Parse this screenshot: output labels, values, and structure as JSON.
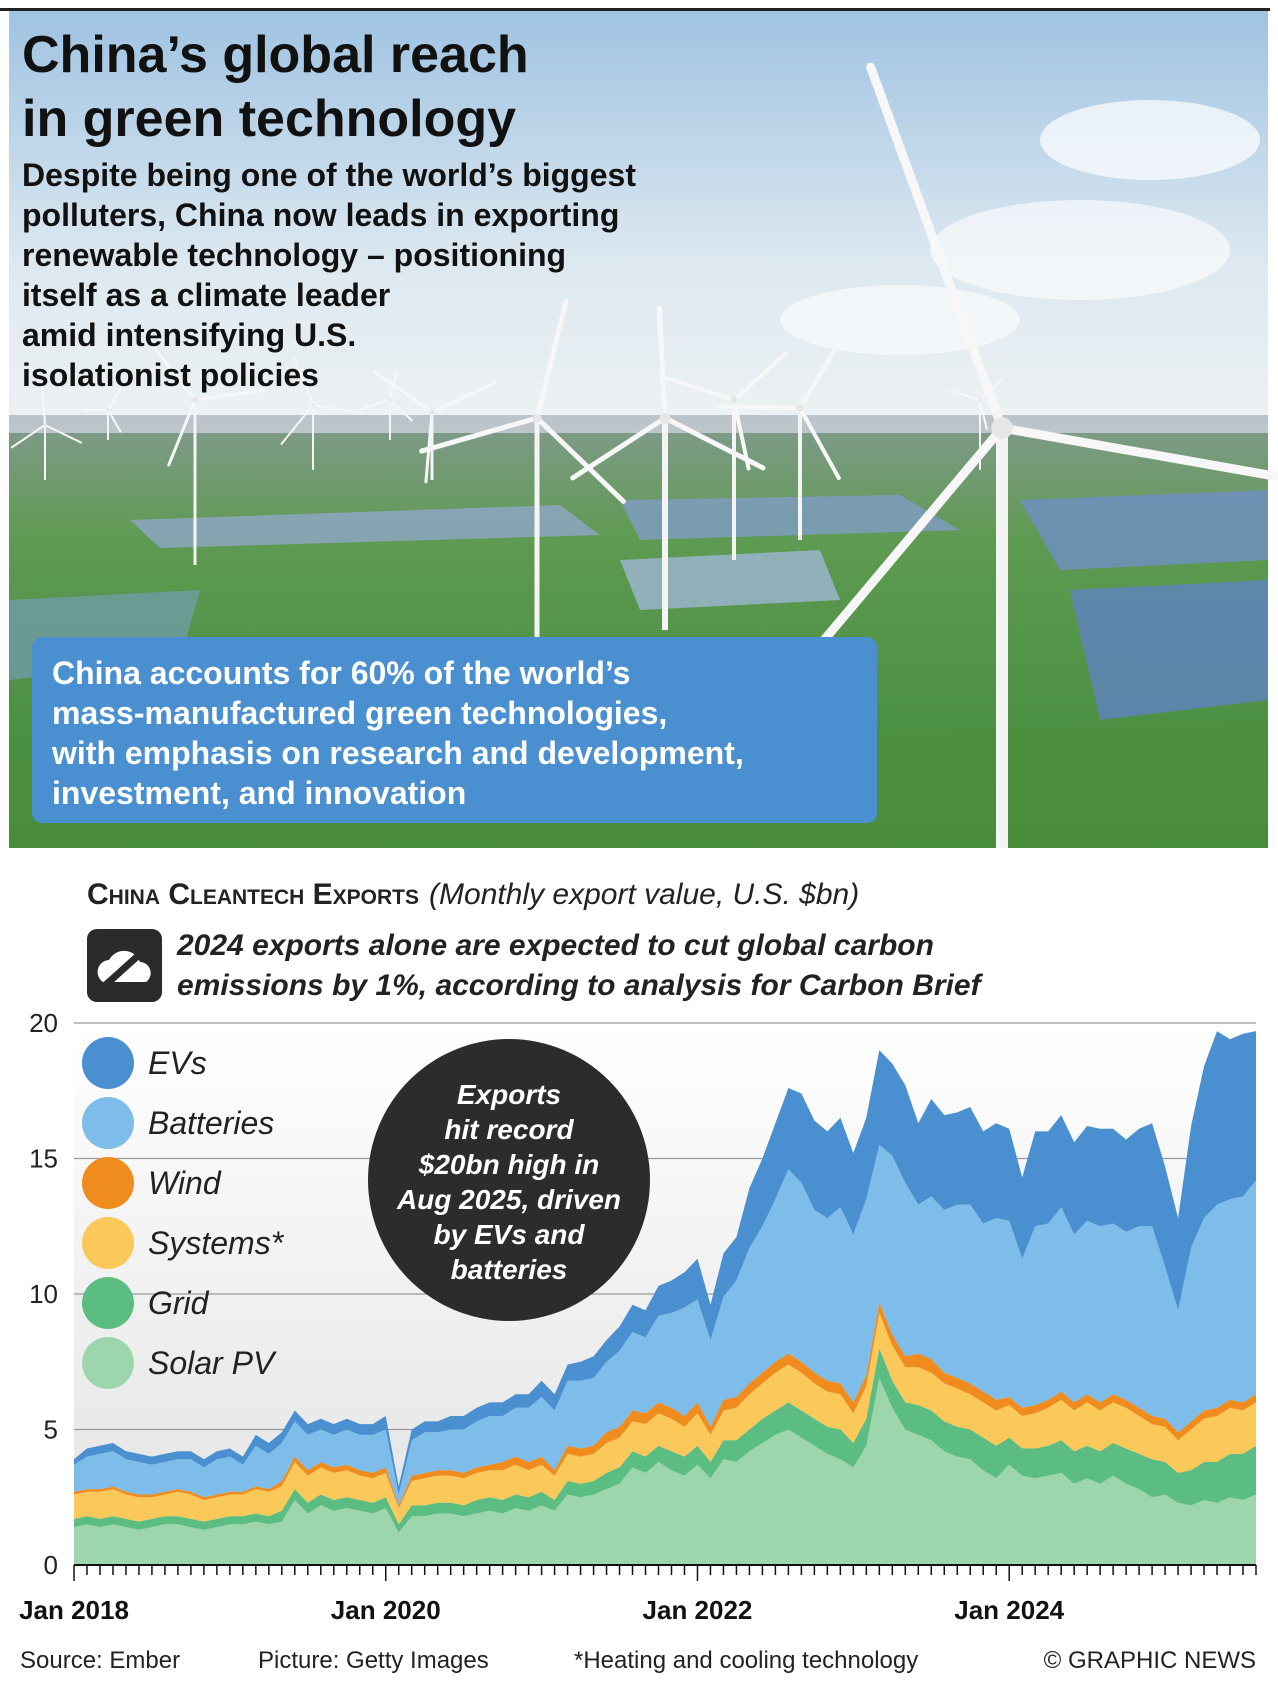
{
  "header": {
    "title": [
      "China’s global reach",
      "in green technology"
    ],
    "subtitle": [
      "Despite being one of the world’s biggest",
      "polluters, China now leads in exporting",
      "renewable technology – positioning",
      "itself as a climate leader",
      "amid intensifying U.S.",
      "isolationist policies"
    ],
    "callout": [
      "China accounts for 60% of the world’s",
      "mass-manufactured green technologies,",
      "with emphasis on research and development,",
      "investment, and innovation"
    ]
  },
  "chart_data": {
    "type": "stacked_area",
    "title": "China Cleantech Exports",
    "subtitle": "(Monthly export value, U.S. $bn)",
    "note": [
      "2024 exports alone are expected to cut global carbon",
      "emissions by 1%, according to analysis for Carbon Brief"
    ],
    "annotation": [
      "Exports",
      "hit record",
      "$20bn high in",
      "Aug 2025, driven",
      "by EVs and",
      "batteries"
    ],
    "categories": [
      "Jan 2018",
      null,
      null,
      null,
      null,
      null,
      null,
      null,
      null,
      null,
      null,
      null,
      null,
      null,
      null,
      null,
      null,
      null,
      null,
      null,
      null,
      null,
      null,
      null,
      "Jan 2020",
      null,
      null,
      null,
      null,
      null,
      null,
      null,
      null,
      null,
      null,
      null,
      null,
      null,
      null,
      null,
      null,
      null,
      null,
      null,
      null,
      null,
      null,
      null,
      "Jan 2022",
      null,
      null,
      null,
      null,
      null,
      null,
      null,
      null,
      null,
      null,
      null,
      null,
      null,
      null,
      null,
      null,
      null,
      null,
      null,
      null,
      null,
      null,
      null,
      "Jan 2024",
      null,
      null,
      null,
      null,
      null,
      null,
      null,
      null,
      null,
      null,
      null,
      null,
      null,
      null,
      null,
      null,
      null,
      null,
      null
    ],
    "ylim": [
      0,
      20
    ],
    "yticks": [
      0,
      5,
      10,
      15,
      20
    ],
    "grid": true,
    "legend": "top-left",
    "series": [
      {
        "name": "Solar PV",
        "color": "#9dd6ad",
        "values": [
          1.4,
          1.5,
          1.4,
          1.5,
          1.4,
          1.3,
          1.4,
          1.5,
          1.5,
          1.4,
          1.3,
          1.4,
          1.5,
          1.5,
          1.6,
          1.5,
          1.6,
          2.4,
          1.9,
          2.2,
          2.0,
          2.1,
          2.0,
          1.9,
          2.1,
          1.2,
          1.8,
          1.8,
          1.9,
          1.9,
          1.8,
          1.9,
          2.0,
          1.9,
          2.1,
          2.0,
          2.2,
          2.0,
          2.6,
          2.5,
          2.6,
          2.8,
          3.0,
          3.6,
          3.4,
          3.8,
          3.5,
          3.3,
          3.7,
          3.2,
          3.9,
          3.8,
          4.2,
          4.5,
          4.8,
          5.0,
          4.7,
          4.4,
          4.1,
          3.9,
          3.6,
          4.4,
          6.9,
          5.8,
          5.0,
          4.8,
          4.6,
          4.2,
          4.0,
          3.9,
          3.5,
          3.2,
          3.7,
          3.3,
          3.2,
          3.3,
          3.4,
          3.0,
          3.2,
          3.0,
          3.3,
          3.0,
          2.8,
          2.5,
          2.6,
          2.3,
          2.2,
          2.4,
          2.3,
          2.5,
          2.4,
          2.6
        ]
      },
      {
        "name": "Grid",
        "color": "#5bbd82",
        "values": [
          0.3,
          0.3,
          0.3,
          0.3,
          0.3,
          0.3,
          0.3,
          0.3,
          0.3,
          0.3,
          0.3,
          0.3,
          0.3,
          0.3,
          0.3,
          0.3,
          0.4,
          0.4,
          0.4,
          0.4,
          0.4,
          0.4,
          0.4,
          0.4,
          0.4,
          0.3,
          0.4,
          0.4,
          0.4,
          0.4,
          0.4,
          0.5,
          0.5,
          0.5,
          0.5,
          0.5,
          0.5,
          0.4,
          0.5,
          0.5,
          0.5,
          0.6,
          0.6,
          0.6,
          0.6,
          0.6,
          0.7,
          0.7,
          0.7,
          0.6,
          0.7,
          0.8,
          0.8,
          0.9,
          0.9,
          1.0,
          1.0,
          1.0,
          1.0,
          1.1,
          0.9,
          1.0,
          1.1,
          1.0,
          1.0,
          1.1,
          1.1,
          1.1,
          1.1,
          1.1,
          1.2,
          1.2,
          1.0,
          1.0,
          1.1,
          1.1,
          1.2,
          1.2,
          1.2,
          1.2,
          1.2,
          1.3,
          1.3,
          1.4,
          1.2,
          1.1,
          1.3,
          1.4,
          1.5,
          1.6,
          1.7,
          1.8
        ]
      },
      {
        "name": "Systems*",
        "color": "#fbc85a",
        "values": [
          0.9,
          0.9,
          1.0,
          1.0,
          0.9,
          0.9,
          0.8,
          0.8,
          0.9,
          0.9,
          0.8,
          0.8,
          0.8,
          0.8,
          0.9,
          0.9,
          0.9,
          1.0,
          1.0,
          1.0,
          1.0,
          1.0,
          0.9,
          0.9,
          0.9,
          0.6,
          0.9,
          1.0,
          1.0,
          1.0,
          1.0,
          1.0,
          1.0,
          1.1,
          1.1,
          1.0,
          1.0,
          0.9,
          1.0,
          1.0,
          1.0,
          1.1,
          1.1,
          1.1,
          1.2,
          1.2,
          1.2,
          1.1,
          1.2,
          1.0,
          1.1,
          1.2,
          1.3,
          1.3,
          1.4,
          1.4,
          1.4,
          1.3,
          1.3,
          1.3,
          1.1,
          1.2,
          1.3,
          1.3,
          1.3,
          1.4,
          1.4,
          1.4,
          1.4,
          1.3,
          1.3,
          1.3,
          1.2,
          1.2,
          1.3,
          1.4,
          1.5,
          1.5,
          1.6,
          1.5,
          1.5,
          1.5,
          1.4,
          1.3,
          1.3,
          1.2,
          1.5,
          1.6,
          1.7,
          1.7,
          1.6,
          1.6
        ]
      },
      {
        "name": "Wind",
        "color": "#f08c1e",
        "values": [
          0.1,
          0.1,
          0.1,
          0.1,
          0.1,
          0.1,
          0.1,
          0.1,
          0.1,
          0.1,
          0.1,
          0.1,
          0.1,
          0.1,
          0.1,
          0.1,
          0.2,
          0.2,
          0.2,
          0.2,
          0.2,
          0.2,
          0.2,
          0.2,
          0.2,
          0.1,
          0.2,
          0.2,
          0.2,
          0.2,
          0.2,
          0.2,
          0.2,
          0.3,
          0.3,
          0.3,
          0.3,
          0.2,
          0.3,
          0.3,
          0.3,
          0.4,
          0.4,
          0.4,
          0.4,
          0.4,
          0.4,
          0.4,
          0.4,
          0.3,
          0.4,
          0.4,
          0.4,
          0.4,
          0.4,
          0.4,
          0.4,
          0.4,
          0.4,
          0.4,
          0.4,
          0.4,
          0.4,
          0.4,
          0.4,
          0.5,
          0.5,
          0.4,
          0.4,
          0.4,
          0.4,
          0.4,
          0.3,
          0.3,
          0.3,
          0.3,
          0.3,
          0.3,
          0.3,
          0.3,
          0.3,
          0.3,
          0.3,
          0.3,
          0.3,
          0.3,
          0.3,
          0.3,
          0.3,
          0.3,
          0.3,
          0.3
        ]
      },
      {
        "name": "Batteries",
        "color": "#7ebde9",
        "values": [
          1.0,
          1.2,
          1.3,
          1.3,
          1.2,
          1.2,
          1.1,
          1.1,
          1.1,
          1.2,
          1.1,
          1.3,
          1.3,
          1.0,
          1.5,
          1.3,
          1.4,
          1.3,
          1.3,
          1.2,
          1.2,
          1.3,
          1.3,
          1.4,
          1.4,
          0.4,
          1.3,
          1.5,
          1.4,
          1.5,
          1.6,
          1.7,
          1.8,
          1.7,
          1.8,
          2.0,
          2.2,
          2.2,
          2.4,
          2.5,
          2.5,
          2.6,
          2.8,
          2.9,
          2.8,
          3.2,
          3.5,
          4.0,
          3.8,
          3.2,
          3.8,
          4.3,
          5.0,
          5.4,
          6.0,
          6.8,
          6.6,
          6.0,
          6.0,
          6.5,
          6.2,
          6.5,
          5.8,
          6.6,
          6.4,
          5.5,
          6.0,
          6.0,
          6.4,
          6.6,
          6.2,
          6.7,
          6.5,
          5.5,
          6.6,
          6.5,
          6.8,
          6.2,
          6.4,
          6.5,
          6.3,
          6.2,
          6.7,
          7.0,
          5.6,
          4.5,
          6.4,
          7.1,
          7.5,
          7.4,
          7.6,
          7.9
        ]
      },
      {
        "name": "EVs",
        "color": "#4a8fd0",
        "values": [
          0.2,
          0.3,
          0.3,
          0.3,
          0.3,
          0.3,
          0.3,
          0.3,
          0.3,
          0.3,
          0.3,
          0.3,
          0.3,
          0.3,
          0.4,
          0.4,
          0.4,
          0.4,
          0.4,
          0.4,
          0.4,
          0.4,
          0.4,
          0.4,
          0.5,
          0.3,
          0.4,
          0.4,
          0.4,
          0.5,
          0.5,
          0.5,
          0.5,
          0.5,
          0.5,
          0.5,
          0.6,
          0.6,
          0.6,
          0.7,
          0.8,
          0.8,
          0.9,
          1.0,
          1.0,
          1.1,
          1.2,
          1.3,
          1.5,
          1.3,
          1.6,
          1.6,
          2.2,
          2.5,
          2.8,
          3.0,
          3.3,
          3.3,
          3.2,
          3.3,
          3.0,
          3.0,
          3.5,
          3.4,
          3.6,
          3.0,
          3.6,
          3.5,
          3.4,
          3.6,
          3.4,
          3.5,
          3.4,
          3.0,
          3.5,
          3.4,
          3.4,
          3.4,
          3.5,
          3.6,
          3.5,
          3.4,
          3.6,
          3.8,
          3.7,
          3.4,
          4.5,
          5.6,
          6.4,
          5.9,
          6.0,
          5.5
        ]
      }
    ]
  },
  "footer": {
    "source": "Source: Ember",
    "picture": "Picture: Getty Images",
    "footnote": "*Heating and cooling technology",
    "copyright": "© GRAPHIC NEWS"
  }
}
